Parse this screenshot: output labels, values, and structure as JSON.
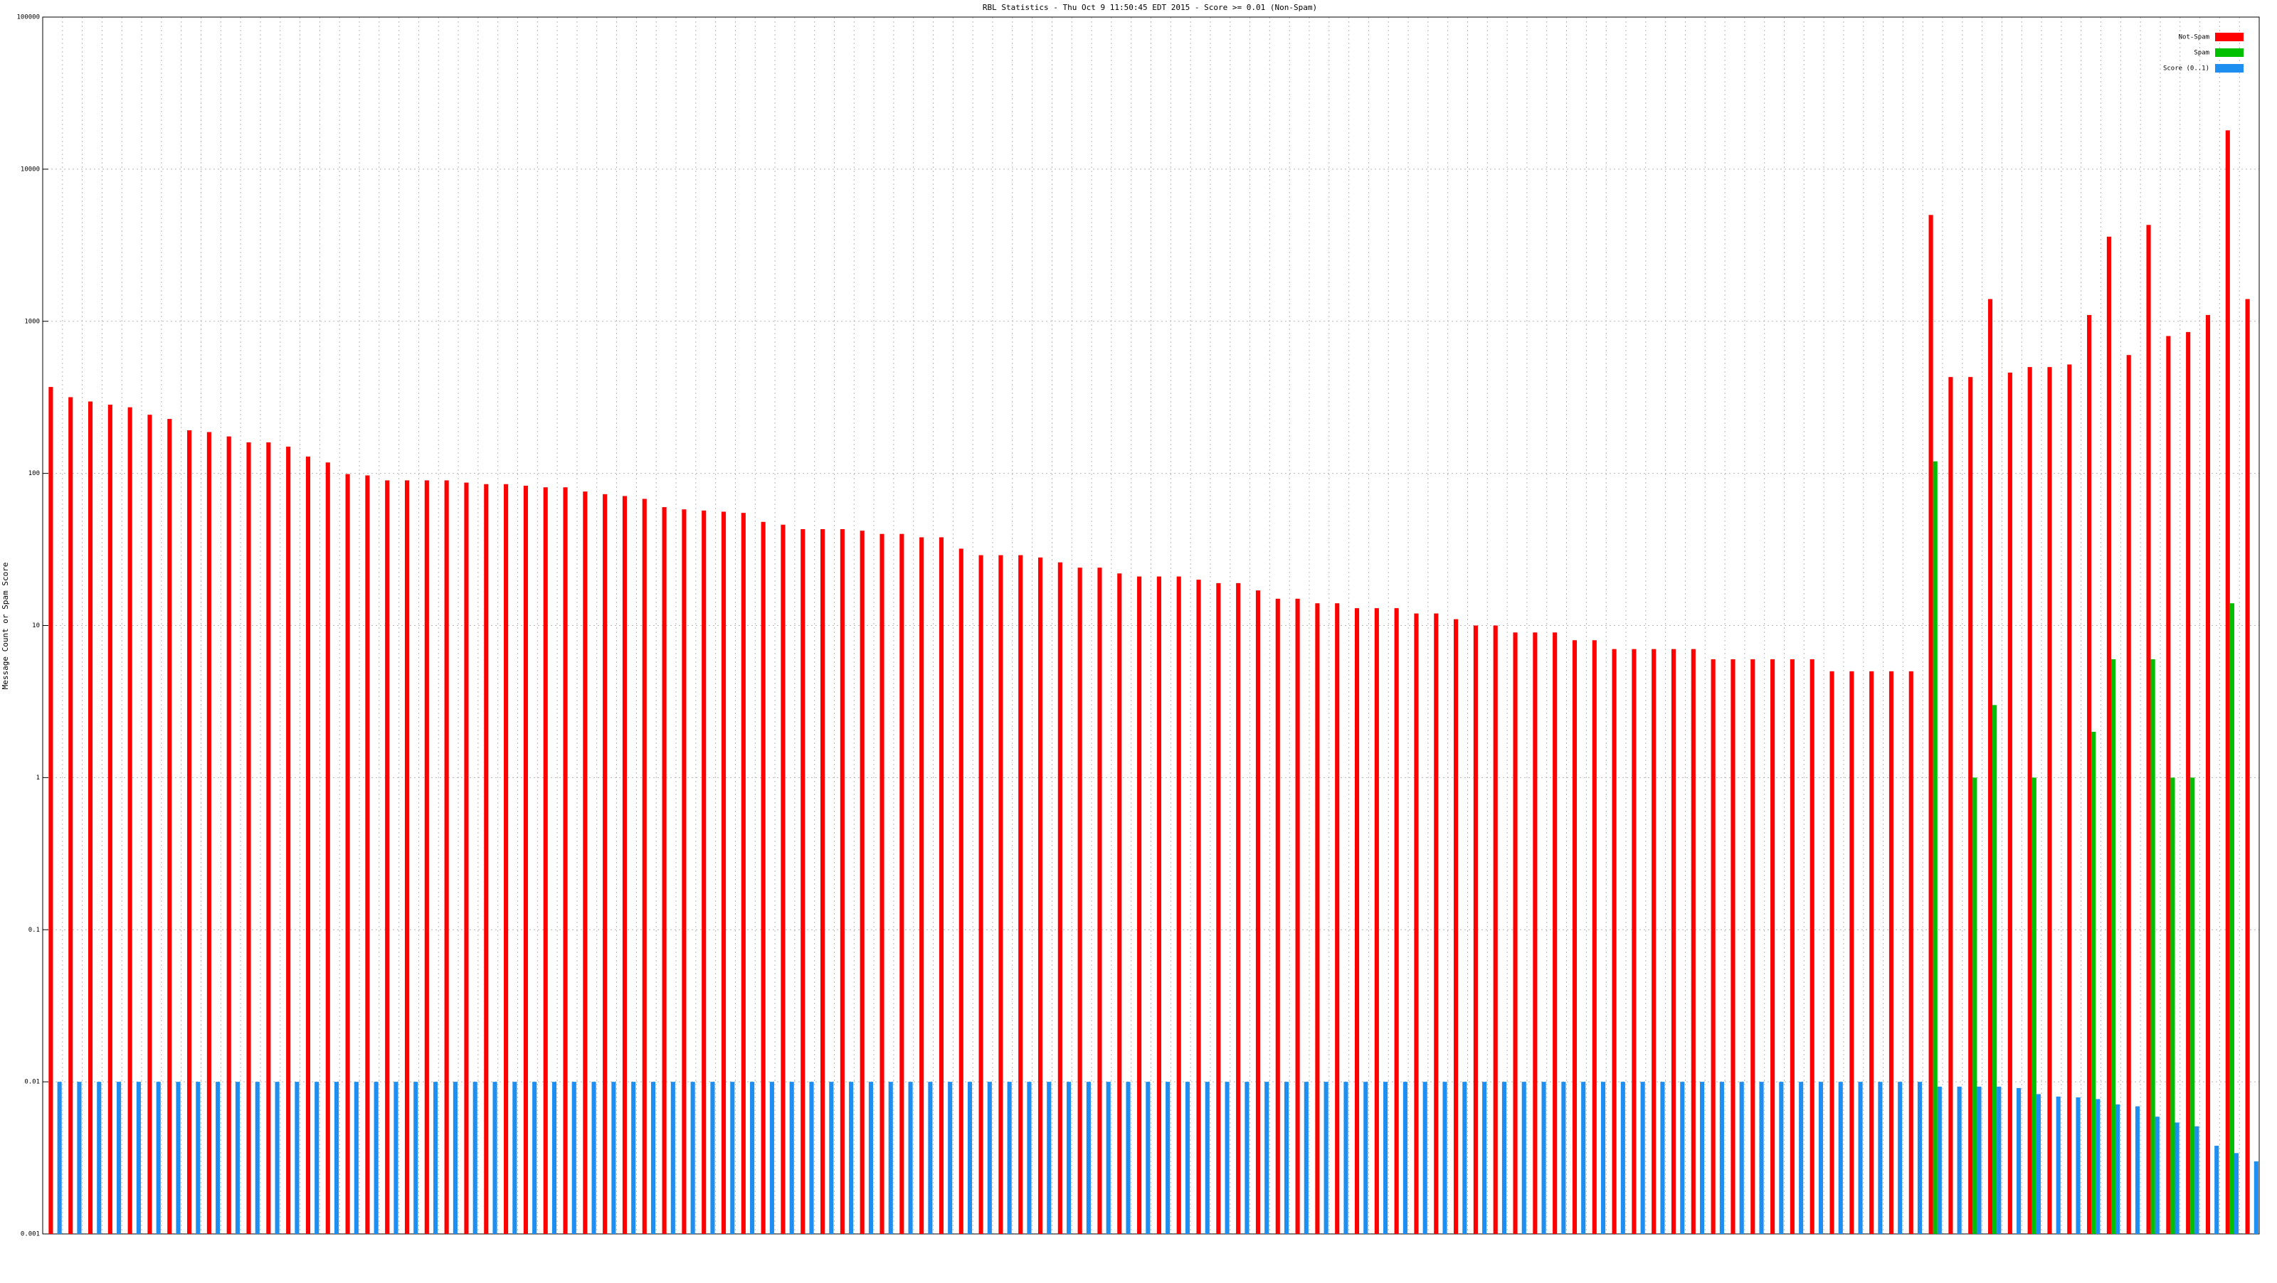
{
  "chart_data": {
    "type": "bar",
    "title": "RBL Statistics - Thu Oct  9 11:50:45 EDT 2015 - Score >= 0.01 (Non-Spam)",
    "ylabel": "Message Count or Spam Score",
    "log_scale": true,
    "grid": true,
    "legend": "upper right",
    "ylim": [
      0.001,
      100000
    ],
    "yticks": [
      0.001,
      0.01,
      0.1,
      1,
      10,
      100,
      1000,
      10000,
      100000
    ],
    "categories": [
      null,
      null,
      null,
      null,
      null,
      null,
      null,
      null,
      null,
      null,
      null,
      null,
      null,
      null,
      null,
      null,
      null,
      null,
      null,
      null,
      null,
      null,
      null,
      null,
      null,
      null,
      null,
      null,
      null,
      null,
      null,
      null,
      null,
      null,
      null,
      null,
      null,
      null,
      null,
      null,
      null,
      null,
      null,
      null,
      null,
      null,
      null,
      null,
      null,
      null,
      null,
      null,
      null,
      null,
      null,
      null,
      null,
      null,
      null,
      null,
      null,
      null,
      null,
      null,
      null,
      null,
      null,
      null,
      null,
      null,
      null,
      null,
      null,
      null,
      null,
      null,
      null,
      null,
      null,
      null,
      null,
      null,
      null,
      null,
      null,
      null,
      null,
      null,
      null,
      null,
      null,
      null,
      null,
      null,
      null,
      null,
      null,
      null,
      null,
      null,
      null,
      null,
      null,
      null,
      null,
      null,
      null,
      null,
      null,
      null,
      null,
      null
    ],
    "series": [
      {
        "name": "Not-Spam",
        "color": "#ff0000",
        "values": [
          370,
          317,
          297,
          283,
          272,
          243,
          228,
          192,
          187,
          175,
          160,
          160,
          150,
          129,
          118,
          99,
          97,
          90,
          90,
          90,
          90,
          87,
          85,
          85,
          83,
          81,
          81,
          76,
          73,
          71,
          68,
          60,
          58,
          57,
          56,
          55,
          48,
          46,
          43,
          43,
          43,
          42,
          40,
          40,
          38,
          38,
          32,
          29,
          29,
          29,
          28,
          26,
          24,
          24,
          22,
          21,
          21,
          21,
          20,
          19,
          19,
          17,
          15,
          15,
          14,
          14,
          13,
          13,
          13,
          12,
          12,
          11,
          10,
          10,
          9,
          9,
          9,
          8,
          8,
          7,
          7,
          7,
          7,
          7,
          6,
          6,
          6,
          6,
          6,
          6,
          5,
          5,
          5,
          5,
          5,
          5000,
          430,
          430,
          1400,
          460,
          500,
          500,
          520,
          1100,
          3600,
          600,
          4300,
          800,
          850,
          1100,
          18000,
          1400
        ]
      },
      {
        "name": "Spam",
        "color": "#00c000",
        "values": [
          0,
          0,
          0,
          0,
          0,
          0,
          0,
          0,
          0,
          0,
          0,
          0,
          0,
          0,
          0,
          0,
          0,
          0,
          0,
          0,
          0,
          0,
          0,
          0,
          0,
          0,
          0,
          0,
          0,
          0,
          0,
          0,
          0,
          0,
          0,
          0,
          0,
          0,
          0,
          0,
          0,
          0,
          0,
          0,
          0,
          0,
          0,
          0,
          0,
          0,
          0,
          0,
          0,
          0,
          0,
          0,
          0,
          0,
          0,
          0,
          0,
          0,
          0,
          0,
          0,
          0,
          0,
          0,
          0,
          0,
          0,
          0,
          0,
          0,
          0,
          0,
          0,
          0,
          0,
          0,
          0,
          0,
          0,
          0,
          0,
          0,
          0,
          0,
          0,
          0,
          0,
          0,
          0,
          0,
          0,
          120,
          0,
          1,
          3,
          0,
          1,
          0,
          0,
          2,
          6,
          0,
          6,
          1,
          1,
          0,
          14,
          0
        ]
      },
      {
        "name": "Score (0..1)",
        "color": "#1e8ff0",
        "values": [
          0.01,
          0.01,
          0.01,
          0.01,
          0.01,
          0.01,
          0.01,
          0.01,
          0.01,
          0.01,
          0.01,
          0.01,
          0.01,
          0.01,
          0.01,
          0.01,
          0.01,
          0.01,
          0.01,
          0.01,
          0.01,
          0.01,
          0.01,
          0.01,
          0.01,
          0.01,
          0.01,
          0.01,
          0.01,
          0.01,
          0.01,
          0.01,
          0.01,
          0.01,
          0.01,
          0.01,
          0.01,
          0.01,
          0.01,
          0.01,
          0.01,
          0.01,
          0.01,
          0.01,
          0.01,
          0.01,
          0.01,
          0.01,
          0.01,
          0.01,
          0.01,
          0.01,
          0.01,
          0.01,
          0.01,
          0.01,
          0.01,
          0.01,
          0.01,
          0.01,
          0.01,
          0.01,
          0.01,
          0.01,
          0.01,
          0.01,
          0.01,
          0.01,
          0.01,
          0.01,
          0.01,
          0.01,
          0.01,
          0.01,
          0.01,
          0.01,
          0.01,
          0.01,
          0.01,
          0.01,
          0.01,
          0.01,
          0.01,
          0.01,
          0.01,
          0.01,
          0.01,
          0.01,
          0.01,
          0.01,
          0.01,
          0.01,
          0.01,
          0.01,
          0.01,
          0.0093,
          0.0093,
          0.0093,
          0.0093,
          0.0091,
          0.0083,
          0.008,
          0.0079,
          0.0077,
          0.0071,
          0.0069,
          0.0059,
          0.0054,
          0.0051,
          0.0038,
          0.0034,
          0.003
        ]
      }
    ]
  }
}
